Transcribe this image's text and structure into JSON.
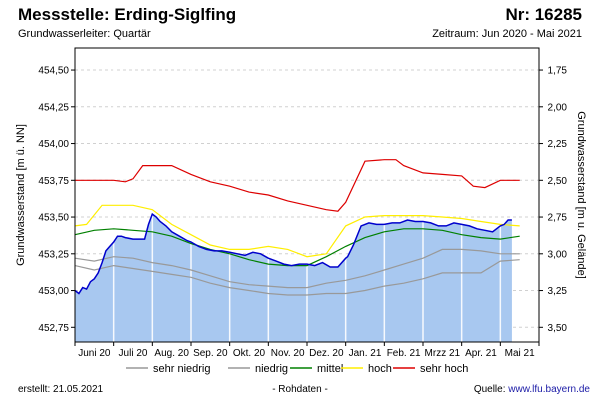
{
  "header": {
    "title": "Messstelle: Erding-Siglfing",
    "nr": "Nr: 16285",
    "aquifer": "Grundwasserleiter: Quartär",
    "period": "Zeitraum: Jun 2020 - Mai 2021"
  },
  "footer": {
    "created_label": "erstellt:",
    "created_date": "21.05.2021",
    "raw_data": "- Rohdaten -",
    "source_label": "Quelle:",
    "source_url": "www.lfu.bayern.de"
  },
  "colors": {
    "fill": "#a8c8f0",
    "measured": "#0000cc",
    "sehr_niedrig": "#999999",
    "niedrig": "#999999",
    "mittel": "#008000",
    "hoch": "#ffee00",
    "sehr_hoch": "#dd0000"
  },
  "chart_data": {
    "type": "area",
    "ylabel": "Grundwasserstand [m ü. NN]",
    "y2label": "Grundwasserstand [m u. Gelände]",
    "ylim": [
      452.65,
      454.65
    ],
    "y2lim": [
      3.6,
      1.6
    ],
    "yticks": [
      "454,50",
      "454,25",
      "454,00",
      "453,75",
      "453,50",
      "453,25",
      "453,00",
      "452,75"
    ],
    "ytick_values": [
      454.5,
      454.25,
      454.0,
      453.75,
      453.5,
      453.25,
      453.0,
      452.75
    ],
    "y2ticks": [
      "1,75",
      "2,00",
      "2,25",
      "2,50",
      "2,75",
      "3,00",
      "3,25",
      "3,50"
    ],
    "y2tick_values": [
      1.75,
      2.0,
      2.25,
      2.5,
      2.75,
      3.0,
      3.25,
      3.5
    ],
    "xlim": [
      0,
      12.0
    ],
    "month_labels": [
      "Juni 20",
      "Juli 20",
      "Aug. 20",
      "Sep. 20",
      "Okt. 20",
      "Nov. 20",
      "Dez. 20",
      "Jan. 21",
      "Feb. 21",
      "Mrzz 21",
      "Apr. 21",
      "Mai 21"
    ],
    "legend": [
      "sehr niedrig",
      "niedrig",
      "mittel",
      "hoch",
      "sehr hoch"
    ],
    "series": [
      {
        "name": "sehr niedrig",
        "x": [
          0,
          0.5,
          1,
          1.5,
          2,
          2.5,
          3,
          3.5,
          4,
          4.5,
          5,
          5.5,
          6,
          6.5,
          7,
          7.5,
          8,
          8.5,
          9,
          9.5,
          10,
          10.5,
          11,
          11.5
        ],
        "values": [
          453.17,
          453.14,
          453.17,
          453.15,
          453.13,
          453.11,
          453.09,
          453.05,
          453.02,
          453.0,
          452.98,
          452.97,
          452.97,
          452.98,
          452.98,
          453.0,
          453.03,
          453.05,
          453.08,
          453.12,
          453.12,
          453.12,
          453.2,
          453.21
        ]
      },
      {
        "name": "niedrig",
        "x": [
          0,
          0.5,
          1,
          1.5,
          2,
          2.5,
          3,
          3.5,
          4,
          4.5,
          5,
          5.5,
          6,
          6.5,
          7,
          7.5,
          8,
          8.5,
          9,
          9.5,
          10,
          10.5,
          11,
          11.5
        ],
        "values": [
          453.22,
          453.2,
          453.23,
          453.22,
          453.19,
          453.17,
          453.14,
          453.1,
          453.06,
          453.04,
          453.03,
          453.02,
          453.02,
          453.05,
          453.07,
          453.1,
          453.14,
          453.18,
          453.22,
          453.28,
          453.28,
          453.27,
          453.25,
          453.25
        ]
      },
      {
        "name": "mittel",
        "x": [
          0,
          0.5,
          1,
          1.5,
          2,
          2.5,
          3,
          3.5,
          4,
          4.5,
          5,
          5.5,
          6,
          6.5,
          7,
          7.5,
          8,
          8.5,
          9,
          9.5,
          10,
          10.5,
          11,
          11.5
        ],
        "values": [
          453.38,
          453.41,
          453.42,
          453.41,
          453.4,
          453.37,
          453.32,
          453.28,
          453.25,
          453.21,
          453.18,
          453.17,
          453.17,
          453.23,
          453.3,
          453.36,
          453.4,
          453.42,
          453.42,
          453.41,
          453.38,
          453.36,
          453.35,
          453.37
        ]
      },
      {
        "name": "hoch",
        "x": [
          0,
          0.3,
          0.7,
          1,
          1.5,
          2,
          2.5,
          3,
          3.5,
          4,
          4.5,
          5,
          5.5,
          6,
          6.5,
          7,
          7.5,
          8,
          8.5,
          9,
          9.5,
          10,
          10.5,
          11,
          11.5
        ],
        "values": [
          453.44,
          453.45,
          453.58,
          453.58,
          453.58,
          453.55,
          453.45,
          453.38,
          453.31,
          453.28,
          453.28,
          453.3,
          453.28,
          453.23,
          453.25,
          453.44,
          453.5,
          453.51,
          453.51,
          453.51,
          453.5,
          453.49,
          453.47,
          453.45,
          453.44
        ]
      },
      {
        "name": "sehr hoch",
        "x": [
          0,
          0.5,
          1,
          1.3,
          1.5,
          1.75,
          2,
          2.5,
          3,
          3.5,
          4,
          4.5,
          5,
          5.5,
          6,
          6.5,
          6.8,
          7,
          7.5,
          8,
          8.3,
          8.5,
          9,
          9.5,
          10,
          10.3,
          10.6,
          11,
          11.5
        ],
        "values": [
          453.75,
          453.75,
          453.75,
          453.74,
          453.76,
          453.85,
          453.85,
          453.85,
          453.79,
          453.74,
          453.71,
          453.67,
          453.65,
          453.61,
          453.58,
          453.55,
          453.54,
          453.6,
          453.88,
          453.89,
          453.89,
          453.85,
          453.8,
          453.79,
          453.78,
          453.71,
          453.7,
          453.75,
          453.75
        ]
      },
      {
        "name": "Messwerte",
        "x": [
          0,
          0.1,
          0.2,
          0.3,
          0.4,
          0.5,
          0.6,
          0.7,
          0.8,
          0.9,
          1.0,
          1.1,
          1.2,
          1.3,
          1.5,
          1.7,
          1.8,
          1.9,
          2.0,
          2.1,
          2.2,
          2.35,
          2.5,
          2.7,
          2.9,
          3.0,
          3.2,
          3.4,
          3.6,
          3.8,
          4.0,
          4.2,
          4.4,
          4.6,
          4.8,
          5.0,
          5.2,
          5.4,
          5.6,
          5.8,
          6.0,
          6.2,
          6.4,
          6.6,
          6.8,
          7.0,
          7.05,
          7.2,
          7.4,
          7.6,
          7.8,
          8.0,
          8.2,
          8.4,
          8.6,
          8.8,
          9.0,
          9.2,
          9.4,
          9.6,
          9.8,
          10.0,
          10.2,
          10.4,
          10.6,
          10.8,
          11.0,
          11.1,
          11.2,
          11.3
        ],
        "values": [
          453.0,
          452.98,
          453.02,
          453.01,
          453.06,
          453.08,
          453.12,
          453.19,
          453.27,
          453.3,
          453.33,
          453.37,
          453.37,
          453.36,
          453.35,
          453.35,
          453.35,
          453.45,
          453.52,
          453.5,
          453.47,
          453.44,
          453.4,
          453.37,
          453.34,
          453.33,
          453.3,
          453.28,
          453.27,
          453.27,
          453.26,
          453.25,
          453.24,
          453.26,
          453.25,
          453.22,
          453.2,
          453.18,
          453.17,
          453.18,
          453.18,
          453.17,
          453.19,
          453.16,
          453.16,
          453.22,
          453.23,
          453.31,
          453.44,
          453.46,
          453.45,
          453.45,
          453.46,
          453.46,
          453.48,
          453.47,
          453.47,
          453.46,
          453.44,
          453.44,
          453.46,
          453.45,
          453.44,
          453.42,
          453.41,
          453.4,
          453.44,
          453.45,
          453.48,
          453.48
        ]
      }
    ]
  }
}
